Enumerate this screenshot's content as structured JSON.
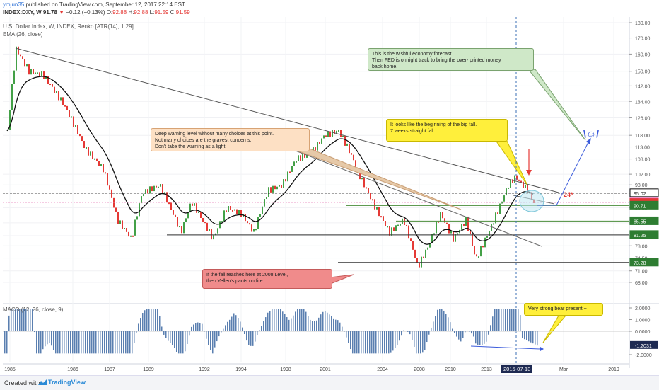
{
  "header": {
    "author": "ymjun35",
    "published": "published on TradingView.com, September 12, 2017 22:14 EST",
    "symbol": "INDEX:DXY, W",
    "last": "91.78",
    "change": "−0.12 (−0.13%)",
    "ohlc": {
      "o": "92.88",
      "h": "92.88",
      "l": "91.59",
      "c": "91.59"
    },
    "study_title": "U.S. Dollar Index, W, INDEX, Renko [ATR(14), 1.29]",
    "ema_label": "EMA (26, close)"
  },
  "colors": {
    "up": "#43a047",
    "down": "#e53935",
    "ema": "#111111",
    "macd_hist": "#5a7fb0",
    "blue_line": "#3b5bdb"
  },
  "annotations": {
    "wishful": "This is the wishful economy forecast.\nThen FED is on right track to bring the over- printed money\nback home.",
    "big_fall": "It looks like the beginning of the big fall.\n7 weeks straight fall",
    "deep_warning": "Deep warning level without many choices at this point.\nNot many choices are the gravest concerns.\nDon't take the warning as a light",
    "fall_2008": "If the fall reaches here at 2008 Level,\nthen Yellen's pants on fire.",
    "bear": "Very strong bear present ~",
    "minus24": "-24*",
    "smiley": "\\☺/"
  },
  "chart_data": [
    {
      "type": "renko",
      "title": "U.S. Dollar Index, W, INDEX, Renko [ATR(14), 1.29]",
      "y_axis_labels": [
        "180.00",
        "170.00",
        "160.00",
        "150.00",
        "142.00",
        "134.00",
        "126.00",
        "118.00",
        "113.00",
        "108.00",
        "102.00",
        "98.00",
        "95.00",
        "90.00",
        "85.00",
        "81.00",
        "78.00",
        "74.50",
        "71.00",
        "68.00"
      ],
      "price_labels": [
        {
          "value": "95.02",
          "color": "#ffffff",
          "text_color": "#111111"
        },
        {
          "value": "91.78",
          "color": "#e040a0",
          "text_color": "#ffffff"
        },
        {
          "value": "91.59",
          "color": "#e53935",
          "text_color": "#ffffff"
        },
        {
          "value": "90.71",
          "color": "#2e7d32",
          "text_color": "#ffffff"
        },
        {
          "value": "85.55",
          "color": "#2e7d32",
          "text_color": "#ffffff"
        },
        {
          "value": "81.25",
          "color": "#2e7d32",
          "text_color": "#ffffff"
        },
        {
          "value": "73.28",
          "color": "#2e7d32",
          "text_color": "#ffffff"
        }
      ],
      "x_axis_labels": [
        "1985",
        "1986",
        "1987",
        "1989",
        "1992",
        "1994",
        "1998",
        "2001",
        "2004",
        "2008",
        "2010",
        "2013",
        "2015-07-13",
        "Mar",
        "2019"
      ],
      "series": [
        {
          "name": "Renko",
          "x": [
            "1985",
            "1986",
            "1987",
            "1989",
            "1992",
            "1994",
            "1998",
            "2001",
            "2004",
            "2008",
            "2010",
            "2013",
            "2015",
            "2017"
          ],
          "values": [
            160,
            140,
            118,
            100,
            86,
            84,
            98,
            118,
            100,
            76,
            86,
            78,
            101,
            92
          ]
        },
        {
          "name": "EMA (26, close)",
          "x": [
            "1985",
            "1986",
            "1987",
            "1989",
            "1992",
            "1994",
            "1998",
            "2001",
            "2004",
            "2008",
            "2010",
            "2013",
            "2015",
            "2017"
          ],
          "values": [
            150,
            144,
            124,
            100,
            90,
            86,
            94,
            112,
            104,
            82,
            86,
            80,
            96,
            94
          ]
        }
      ]
    },
    {
      "type": "bar",
      "title": "MACD (12, 26, close, 9)",
      "y_axis_labels": [
        "2.0000",
        "1.0000",
        "0.0000",
        "-1.2031",
        "-2.0000"
      ],
      "series": [
        {
          "name": "MACD (12, 26, close, 9)",
          "last": "-1.2031"
        }
      ]
    }
  ],
  "footer": {
    "created_with": "Created with",
    "brand": "TradingView"
  }
}
